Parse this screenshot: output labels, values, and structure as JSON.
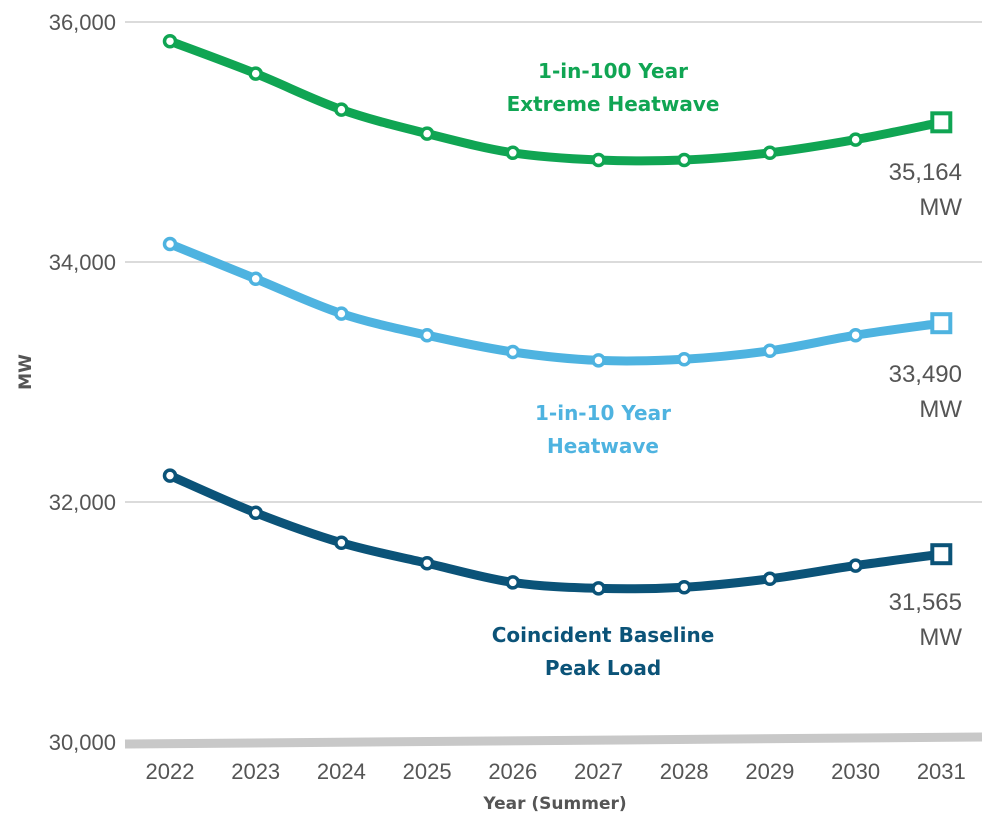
{
  "chart_data": {
    "type": "line",
    "xlabel": "Year (Summer)",
    "ylabel": "MW",
    "ylim": [
      30000,
      36000
    ],
    "yticks": [
      "30,000",
      "32,000",
      "34,000",
      "36,000"
    ],
    "x": [
      "2022",
      "2023",
      "2024",
      "2025",
      "2026",
      "2027",
      "2028",
      "2029",
      "2030",
      "2031"
    ],
    "grid": "horizontal",
    "series": [
      {
        "name_lines": [
          "1-in-100 Year",
          "Extreme Heatwave"
        ],
        "color": "#10a553",
        "values": [
          35840,
          35570,
          35270,
          35070,
          34910,
          34850,
          34850,
          34910,
          35020,
          35164
        ],
        "end_label": [
          "35,164",
          "MW"
        ]
      },
      {
        "name_lines": [
          "1-in-10 Year",
          "Heatwave"
        ],
        "color": "#4eb3e0",
        "values": [
          34150,
          33860,
          33570,
          33390,
          33250,
          33180,
          33190,
          33260,
          33390,
          33490
        ],
        "end_label": [
          "33,490",
          "MW"
        ]
      },
      {
        "name_lines": [
          "Coincident Baseline",
          "Peak Load"
        ],
        "color": "#0b5378",
        "values": [
          32220,
          31910,
          31660,
          31490,
          31330,
          31280,
          31290,
          31360,
          31470,
          31565
        ],
        "end_label": [
          "31,565",
          "MW"
        ]
      }
    ]
  }
}
